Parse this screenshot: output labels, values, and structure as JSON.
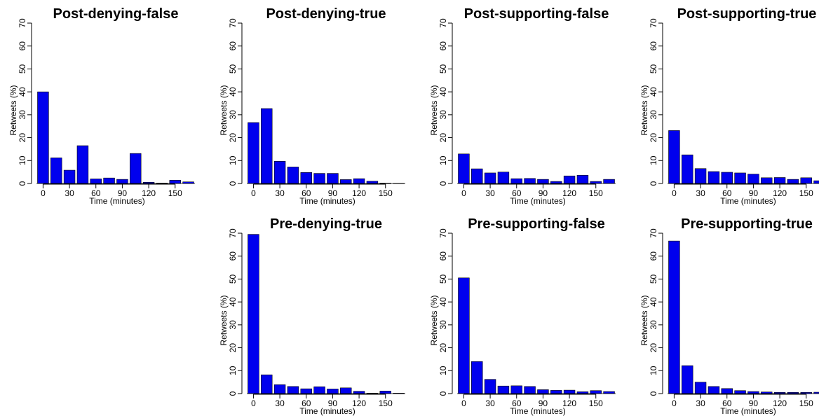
{
  "chart_data": [
    {
      "type": "bar",
      "title": "Post-denying-false",
      "xlabel": "Time (minutes)",
      "ylabel": "Retweets (%)",
      "x": [
        0,
        15,
        30,
        45,
        60,
        75,
        90,
        105,
        120,
        135,
        150,
        165
      ],
      "values": [
        40.0,
        11.2,
        5.8,
        16.5,
        2.0,
        2.4,
        1.8,
        13.1,
        0.5,
        0.2,
        1.4,
        0.7
      ],
      "xticks": [
        0,
        30,
        60,
        90,
        120,
        150
      ],
      "yticks": [
        0,
        10,
        20,
        30,
        40,
        50,
        60,
        70
      ],
      "ylim": [
        0,
        70
      ],
      "color": "#0000ee"
    },
    {
      "type": "bar",
      "title": "Post-denying-true",
      "xlabel": "Time (minutes)",
      "ylabel": "Retweets (%)",
      "x": [
        0,
        15,
        30,
        45,
        60,
        75,
        90,
        105,
        120,
        135,
        150,
        165
      ],
      "values": [
        26.6,
        32.7,
        9.7,
        7.2,
        4.8,
        4.4,
        4.4,
        1.7,
        2.1,
        1.0,
        0.2,
        0.1
      ],
      "xticks": [
        0,
        30,
        60,
        90,
        120,
        150
      ],
      "yticks": [
        0,
        10,
        20,
        30,
        40,
        50,
        60,
        70
      ],
      "ylim": [
        0,
        70
      ],
      "color": "#0000ee"
    },
    {
      "type": "bar",
      "title": "Post-supporting-false",
      "xlabel": "Time (minutes)",
      "ylabel": "Retweets (%)",
      "x": [
        0,
        15,
        30,
        45,
        60,
        75,
        90,
        105,
        120,
        135,
        150,
        165
      ],
      "values": [
        12.9,
        6.4,
        4.6,
        5.0,
        2.1,
        2.2,
        1.8,
        0.9,
        3.3,
        3.6,
        0.9,
        1.8
      ],
      "xticks": [
        0,
        30,
        60,
        90,
        120,
        150
      ],
      "yticks": [
        0,
        10,
        20,
        30,
        40,
        50,
        60,
        70
      ],
      "ylim": [
        0,
        70
      ],
      "color": "#0000ee"
    },
    {
      "type": "bar",
      "title": "Post-supporting-true",
      "xlabel": "Time (minutes)",
      "ylabel": "Retweets (%)",
      "x": [
        0,
        15,
        30,
        45,
        60,
        75,
        90,
        105,
        120,
        135,
        150,
        165
      ],
      "values": [
        23.1,
        12.5,
        6.5,
        5.2,
        4.9,
        4.6,
        4.1,
        2.5,
        2.6,
        1.8,
        2.5,
        1.2
      ],
      "xticks": [
        0,
        30,
        60,
        90,
        120,
        150
      ],
      "yticks": [
        0,
        10,
        20,
        30,
        40,
        50,
        60,
        70
      ],
      "ylim": [
        0,
        70
      ],
      "color": "#0000ee"
    },
    {
      "type": "bar",
      "title": "Pre-denying-true",
      "xlabel": "Time (minutes)",
      "ylabel": "Retweets (%)",
      "x": [
        0,
        15,
        30,
        45,
        60,
        75,
        90,
        105,
        120,
        135,
        150,
        165
      ],
      "values": [
        69.5,
        8.2,
        3.9,
        3.1,
        2.1,
        3.0,
        2.0,
        2.5,
        1.0,
        0.2,
        1.1,
        0.2
      ],
      "xticks": [
        0,
        30,
        60,
        90,
        120,
        150
      ],
      "yticks": [
        0,
        10,
        20,
        30,
        40,
        50,
        60,
        70
      ],
      "ylim": [
        0,
        70
      ],
      "color": "#0000ee"
    },
    {
      "type": "bar",
      "title": "Pre-supporting-false",
      "xlabel": "Time (minutes)",
      "ylabel": "Retweets (%)",
      "x": [
        0,
        15,
        30,
        45,
        60,
        75,
        90,
        105,
        120,
        135,
        150,
        165
      ],
      "values": [
        50.5,
        14.0,
        6.2,
        3.3,
        3.4,
        3.1,
        1.7,
        1.4,
        1.5,
        0.8,
        1.3,
        0.9
      ],
      "xticks": [
        0,
        30,
        60,
        90,
        120,
        150
      ],
      "yticks": [
        0,
        10,
        20,
        30,
        40,
        50,
        60,
        70
      ],
      "ylim": [
        0,
        70
      ],
      "color": "#0000ee"
    },
    {
      "type": "bar",
      "title": "Pre-supporting-true",
      "xlabel": "Time (minutes)",
      "ylabel": "Retweets (%)",
      "x": [
        0,
        15,
        30,
        45,
        60,
        75,
        90,
        105,
        120,
        135,
        150,
        165
      ],
      "values": [
        66.6,
        12.2,
        5.0,
        3.1,
        2.2,
        1.3,
        0.9,
        0.7,
        0.5,
        0.5,
        0.5,
        0.6
      ],
      "xticks": [
        0,
        30,
        60,
        90,
        120,
        150
      ],
      "yticks": [
        0,
        10,
        20,
        30,
        40,
        50,
        60,
        70
      ],
      "ylim": [
        0,
        70
      ],
      "color": "#0000ee"
    }
  ]
}
